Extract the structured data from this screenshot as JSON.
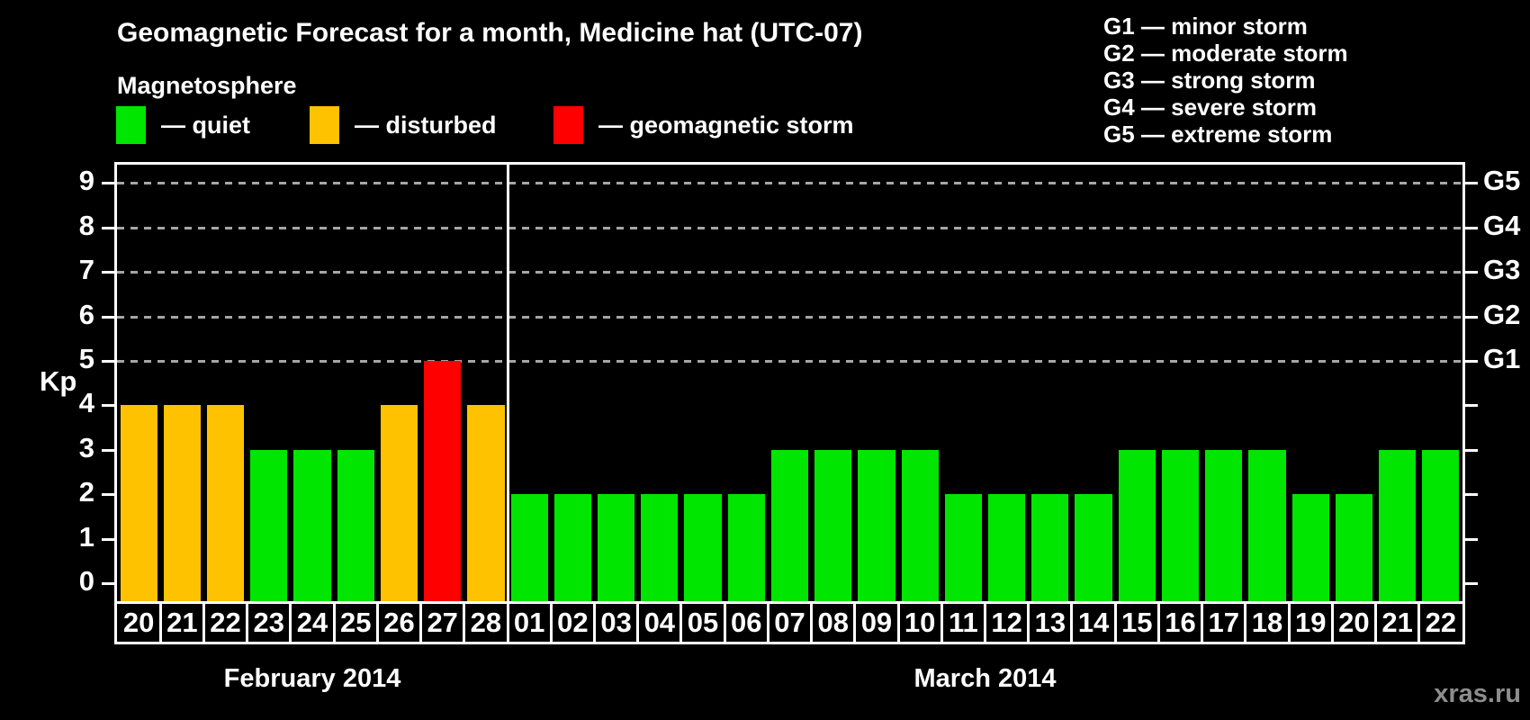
{
  "title": "Geomagnetic Forecast for a month, Medicine hat (UTC-07)",
  "subtitle": "Magnetosphere",
  "watermark": "xras.ru",
  "legend": {
    "items": [
      {
        "key": "quiet",
        "label": "— quiet",
        "color": "#00E600"
      },
      {
        "key": "disturbed",
        "label": "— disturbed",
        "color": "#FFC200"
      },
      {
        "key": "storm",
        "label": "— geomagnetic storm",
        "color": "#FF0000"
      }
    ]
  },
  "g_legend": [
    "G1 — minor storm",
    "G2 — moderate storm",
    "G3 — strong storm",
    "G4 — severe storm",
    "G5 — extreme storm"
  ],
  "y_axis": {
    "label": "Kp"
  },
  "chart_data": {
    "type": "bar",
    "title": "Geomagnetic Forecast for a month, Medicine hat (UTC-07)",
    "ylabel": "Kp",
    "ylim": [
      0,
      9
    ],
    "grid": "dashed horizontal lines at Kp 5-9 only",
    "gridlines_at": [
      5,
      6,
      7,
      8,
      9
    ],
    "right_axis_labels": [
      {
        "text": "G1",
        "kp": 5
      },
      {
        "text": "G2",
        "kp": 6
      },
      {
        "text": "G3",
        "kp": 7
      },
      {
        "text": "G4",
        "kp": 8
      },
      {
        "text": "G5",
        "kp": 9
      }
    ],
    "color_map": {
      "quiet": "#00E600",
      "disturbed": "#FFC200",
      "storm": "#FF0000"
    },
    "series": [
      {
        "month": "February 2014",
        "days": [
          "20",
          "21",
          "22",
          "23",
          "24",
          "25",
          "26",
          "27",
          "28"
        ],
        "kp": [
          4,
          4,
          4,
          3,
          3,
          3,
          4,
          5,
          4
        ],
        "state": [
          "disturbed",
          "disturbed",
          "disturbed",
          "quiet",
          "quiet",
          "quiet",
          "disturbed",
          "storm",
          "disturbed"
        ]
      },
      {
        "month": "March 2014",
        "days": [
          "01",
          "02",
          "03",
          "04",
          "05",
          "06",
          "07",
          "08",
          "09",
          "10",
          "11",
          "12",
          "13",
          "14",
          "15",
          "16",
          "17",
          "18",
          "19",
          "20",
          "21",
          "22"
        ],
        "kp": [
          2,
          2,
          2,
          2,
          2,
          2,
          3,
          3,
          3,
          3,
          2,
          2,
          2,
          2,
          3,
          3,
          3,
          3,
          2,
          2,
          3,
          3
        ],
        "state": [
          "quiet",
          "quiet",
          "quiet",
          "quiet",
          "quiet",
          "quiet",
          "quiet",
          "quiet",
          "quiet",
          "quiet",
          "quiet",
          "quiet",
          "quiet",
          "quiet",
          "quiet",
          "quiet",
          "quiet",
          "quiet",
          "quiet",
          "quiet",
          "quiet",
          "quiet"
        ]
      }
    ]
  }
}
